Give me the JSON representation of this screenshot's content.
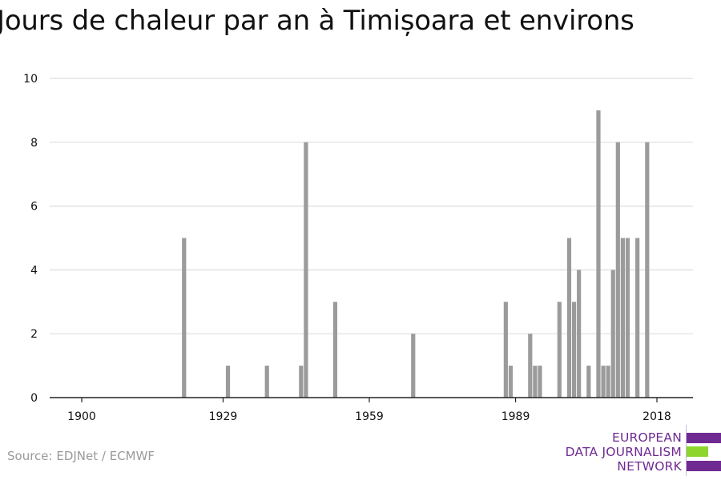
{
  "title": "Jours de chaleur par an à Timișoara et environs",
  "source": "Source: EDJNet / ECMWF",
  "logo": {
    "line1": "EUROPEAN",
    "line2": "DATA JOURNALISM",
    "line3": "NETWORK",
    "colors": {
      "purple": "#6f2a92",
      "green": "#8ed62e"
    }
  },
  "colors": {
    "bar": "#9b9b9b",
    "grid": "#dddddd",
    "axis": "#222222",
    "text": "#111111"
  },
  "chart_data": {
    "type": "bar",
    "title": "Jours de chaleur par an à Timișoara et environs",
    "xlabel": "",
    "ylabel": "",
    "xlim": [
      1900,
      2018
    ],
    "ylim": [
      0,
      10
    ],
    "grid": true,
    "x_ticks": [
      1900,
      1929,
      1959,
      1989,
      2018
    ],
    "y_ticks": [
      0,
      2,
      4,
      6,
      8,
      10
    ],
    "years": [
      1921,
      1930,
      1938,
      1945,
      1946,
      1952,
      1968,
      1987,
      1988,
      1992,
      1993,
      1994,
      1998,
      2000,
      2001,
      2002,
      2004,
      2006,
      2007,
      2008,
      2009,
      2010,
      2011,
      2012,
      2014,
      2016
    ],
    "values": [
      5,
      1,
      1,
      1,
      8,
      3,
      2,
      3,
      1,
      2,
      1,
      1,
      3,
      5,
      3,
      4,
      1,
      9,
      1,
      1,
      4,
      8,
      5,
      5,
      5,
      8
    ]
  }
}
